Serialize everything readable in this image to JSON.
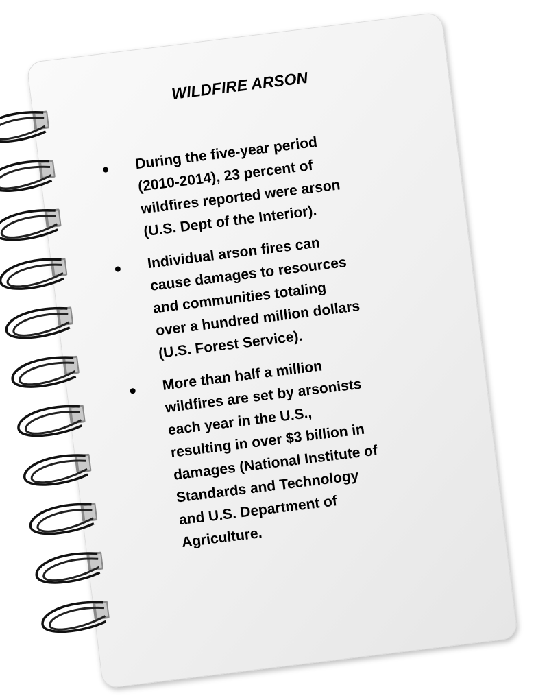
{
  "title": "WILDFIRE ARSON",
  "bullets": [
    [
      "During the five-year period",
      "(2010-2014), 23 percent of",
      "wildfires reported were arson",
      "(U.S. Dept of the Interior)."
    ],
    [
      "Individual arson fires can",
      "cause damages to resources",
      "and communities totaling",
      "over a hundred million dollars",
      "(U.S. Forest Service)."
    ],
    [
      "More than half a million",
      "wildfires are set by arsonists",
      "each year in the U.S.,",
      "resulting in over $3 billion in",
      "damages (National Institute of",
      "Standards and Technology",
      "and U.S. Department of",
      "Agriculture."
    ]
  ]
}
